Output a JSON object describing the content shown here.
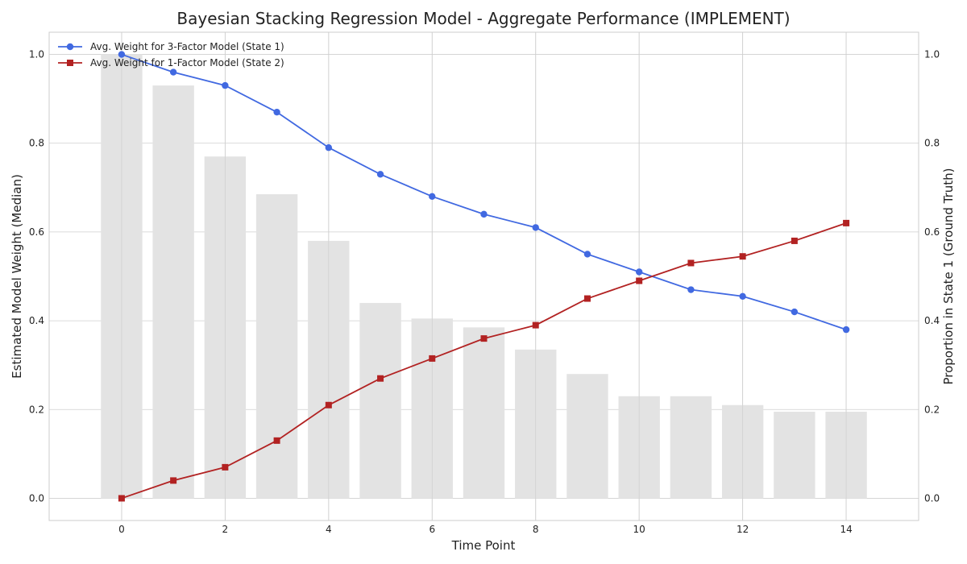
{
  "chart_data": {
    "type": "line",
    "title": "Bayesian Stacking Regression Model - Aggregate Performance (IMPLEMENT)",
    "xlabel": "Time Point",
    "ylabel": "Estimated Model Weight (Median)",
    "y2label": "Proportion in State 1 (Ground Truth)",
    "xlim": [
      -1.4,
      15.4
    ],
    "ylim": [
      -0.05,
      1.05
    ],
    "y2lim": [
      -0.05,
      1.05
    ],
    "x_ticks": [
      0,
      2,
      4,
      6,
      8,
      10,
      12,
      14
    ],
    "y_ticks": [
      0.0,
      0.2,
      0.4,
      0.6,
      0.8,
      1.0
    ],
    "y2_ticks": [
      0.0,
      0.2,
      0.4,
      0.6,
      0.8,
      1.0
    ],
    "grid": true,
    "legend_position": "top-left",
    "x": [
      0,
      1,
      2,
      3,
      4,
      5,
      6,
      7,
      8,
      9,
      10,
      11,
      12,
      13,
      14
    ],
    "series": [
      {
        "name": "Avg. Weight for 3-Factor Model (State 1)",
        "color": "#4169e1",
        "marker": "circle",
        "values": [
          1.0,
          0.96,
          0.93,
          0.87,
          0.79,
          0.73,
          0.68,
          0.64,
          0.61,
          0.55,
          0.51,
          0.47,
          0.455,
          0.42,
          0.38
        ]
      },
      {
        "name": "Avg. Weight for 1-Factor Model (State 2)",
        "color": "#b22222",
        "marker": "square",
        "values": [
          0.0,
          0.04,
          0.07,
          0.13,
          0.21,
          0.27,
          0.315,
          0.36,
          0.39,
          0.45,
          0.49,
          0.53,
          0.545,
          0.58,
          0.62
        ]
      }
    ],
    "bars": {
      "axis": "right",
      "color": "#e3e3e3",
      "values": [
        1.0,
        0.93,
        0.77,
        0.685,
        0.58,
        0.44,
        0.405,
        0.385,
        0.335,
        0.28,
        0.23,
        0.23,
        0.21,
        0.195,
        0.195
      ]
    }
  }
}
